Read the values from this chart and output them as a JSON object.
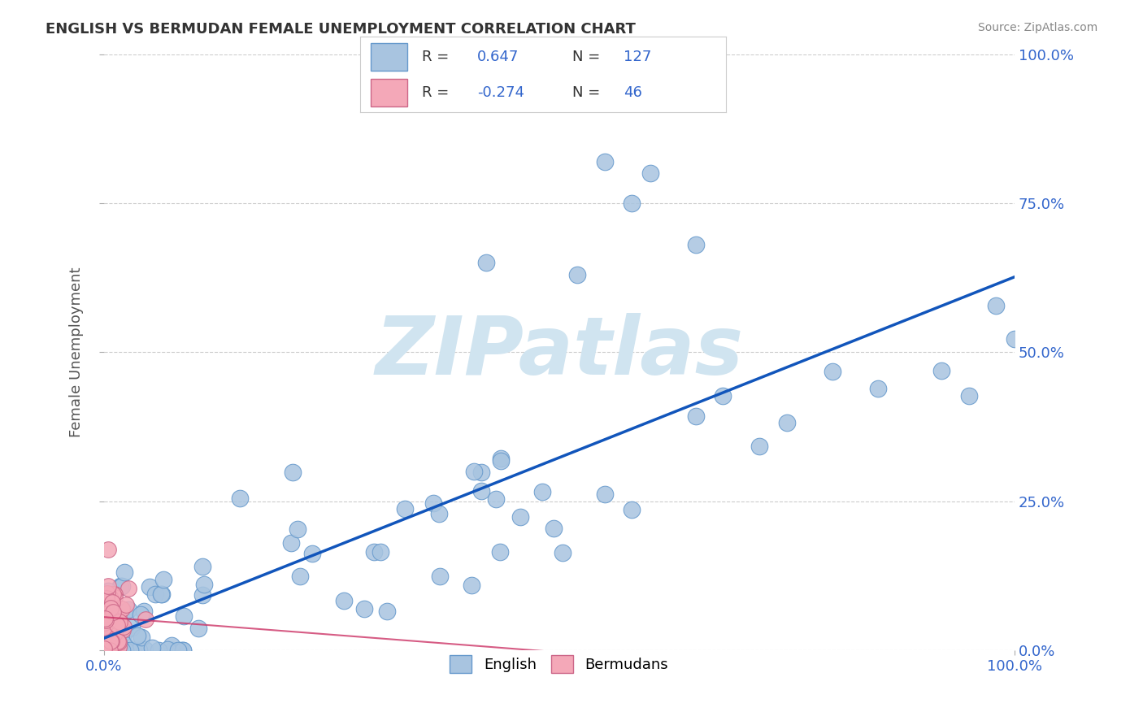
{
  "title": "ENGLISH VS BERMUDAN FEMALE UNEMPLOYMENT CORRELATION CHART",
  "source": "Source: ZipAtlas.com",
  "ylabel": "Female Unemployment",
  "xlim": [
    0,
    1.0
  ],
  "ylim": [
    0,
    1.0
  ],
  "xticks": [
    0.0,
    1.0
  ],
  "xticklabels": [
    "0.0%",
    "100.0%"
  ],
  "yticks": [
    0.0,
    0.25,
    0.5,
    0.75,
    1.0
  ],
  "yticklabels": [
    "0.0%",
    "25.0%",
    "50.0%",
    "75.0%",
    "100.0%"
  ],
  "english_color": "#a8c4e0",
  "english_edge": "#6699cc",
  "bermuda_color": "#f4a8b8",
  "bermuda_edge": "#cc6688",
  "regression_english_color": "#1155bb",
  "regression_bermuda_color": "#cc3366",
  "watermark": "ZIPatlas",
  "watermark_color": "#d0e4f0",
  "legend_R_english": "0.647",
  "legend_N_english": "127",
  "legend_R_bermuda": "-0.274",
  "legend_N_bermuda": "46",
  "title_color": "#333333",
  "axis_label_color": "#555555",
  "tick_color": "#3366cc",
  "grid_color": "#cccccc"
}
